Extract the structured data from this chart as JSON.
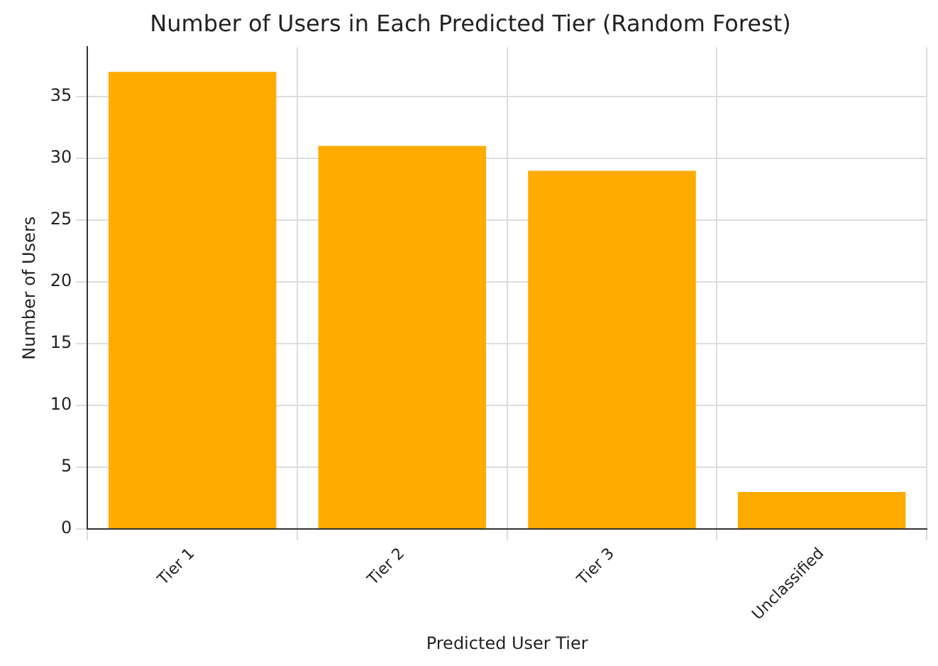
{
  "chart_data": {
    "type": "bar",
    "title": "Number of Users in Each Predicted Tier (Random Forest)",
    "xlabel": "Predicted User Tier",
    "ylabel": "Number of Users",
    "categories": [
      "Tier 1",
      "Tier 2",
      "Tier 3",
      "Unclassified"
    ],
    "values": [
      37,
      31,
      29,
      3
    ],
    "color": "#ffab00",
    "ylim": [
      0,
      39
    ],
    "yticks": [
      0,
      5,
      10,
      15,
      20,
      25,
      30,
      35
    ],
    "grid": true
  }
}
